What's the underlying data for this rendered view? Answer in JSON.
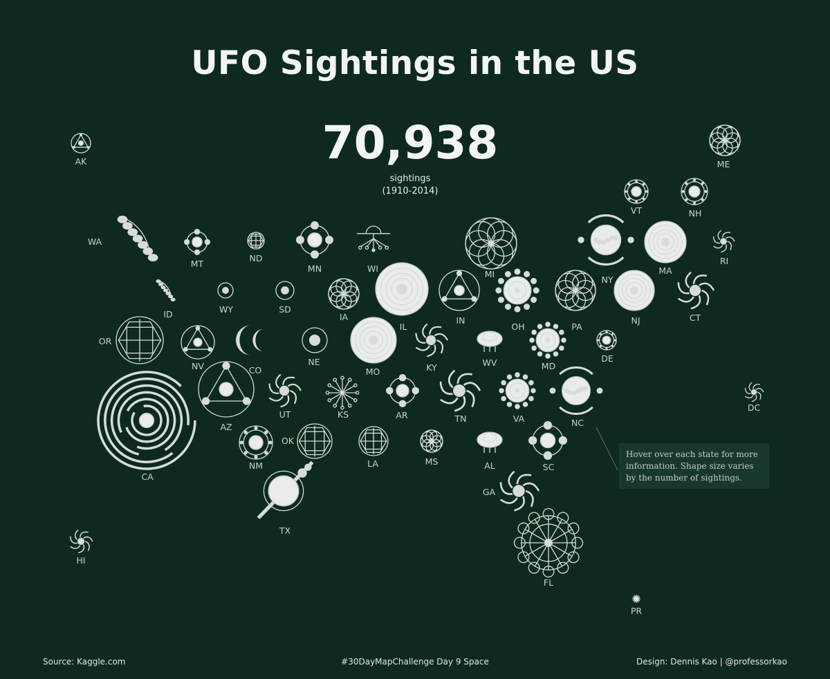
{
  "title": "UFO Sightings in the US",
  "total": {
    "value": "70,938",
    "unit": "sightings",
    "period": "(1910-2014)"
  },
  "states": [
    {
      "code": "AK",
      "shape": "tri"
    },
    {
      "code": "ME",
      "shape": "rosette"
    },
    {
      "code": "VT",
      "shape": "ring"
    },
    {
      "code": "NH",
      "shape": "ring"
    },
    {
      "code": "WA",
      "shape": "chain"
    },
    {
      "code": "MT",
      "shape": "quad"
    },
    {
      "code": "ND",
      "shape": "hex"
    },
    {
      "code": "MN",
      "shape": "quad"
    },
    {
      "code": "WI",
      "shape": "tree"
    },
    {
      "code": "MI",
      "shape": "rosette"
    },
    {
      "code": "NY",
      "shape": "orbit"
    },
    {
      "code": "MA",
      "shape": "target"
    },
    {
      "code": "RI",
      "shape": "swirl"
    },
    {
      "code": "ID",
      "shape": "chain"
    },
    {
      "code": "WY",
      "shape": "dot"
    },
    {
      "code": "SD",
      "shape": "dot"
    },
    {
      "code": "IA",
      "shape": "rosette"
    },
    {
      "code": "IL",
      "shape": "target"
    },
    {
      "code": "IN",
      "shape": "tri"
    },
    {
      "code": "OH",
      "shape": "sun"
    },
    {
      "code": "PA",
      "shape": "rosette"
    },
    {
      "code": "NJ",
      "shape": "target"
    },
    {
      "code": "CT",
      "shape": "swirl"
    },
    {
      "code": "OR",
      "shape": "hex"
    },
    {
      "code": "NV",
      "shape": "tri"
    },
    {
      "code": "CO",
      "shape": "crescent"
    },
    {
      "code": "NE",
      "shape": "dot"
    },
    {
      "code": "MO",
      "shape": "target"
    },
    {
      "code": "KY",
      "shape": "swirl"
    },
    {
      "code": "WV",
      "shape": "dome"
    },
    {
      "code": "MD",
      "shape": "sun"
    },
    {
      "code": "DE",
      "shape": "ring"
    },
    {
      "code": "CA",
      "shape": "maze"
    },
    {
      "code": "AZ",
      "shape": "tri"
    },
    {
      "code": "UT",
      "shape": "swirl"
    },
    {
      "code": "KS",
      "shape": "burst"
    },
    {
      "code": "AR",
      "shape": "quad"
    },
    {
      "code": "TN",
      "shape": "swirl"
    },
    {
      "code": "VA",
      "shape": "sun"
    },
    {
      "code": "NC",
      "shape": "orbit"
    },
    {
      "code": "DC",
      "shape": "swirl"
    },
    {
      "code": "NM",
      "shape": "ring"
    },
    {
      "code": "OK",
      "shape": "hex"
    },
    {
      "code": "LA",
      "shape": "hex"
    },
    {
      "code": "MS",
      "shape": "rosette"
    },
    {
      "code": "AL",
      "shape": "dome"
    },
    {
      "code": "SC",
      "shape": "quad"
    },
    {
      "code": "GA",
      "shape": "swirl"
    },
    {
      "code": "TX",
      "shape": "planet"
    },
    {
      "code": "FL",
      "shape": "wheel"
    },
    {
      "code": "HI",
      "shape": "swirl"
    },
    {
      "code": "PR",
      "shape": "sun"
    }
  ],
  "tooltip": "Hover over each state for more information. Shape size varies by the number of sightings.",
  "footer": {
    "source": "Source: Kaggle.com",
    "challenge": "#30DayMapChallenge Day 9 Space",
    "credit": "Design: Dennis Kao | @professorkao"
  },
  "colors": {
    "background": "#0d2a1d",
    "glyph": "#d7dcd8",
    "text": "#e8ece9",
    "tooltip_bg": "#17382a"
  }
}
